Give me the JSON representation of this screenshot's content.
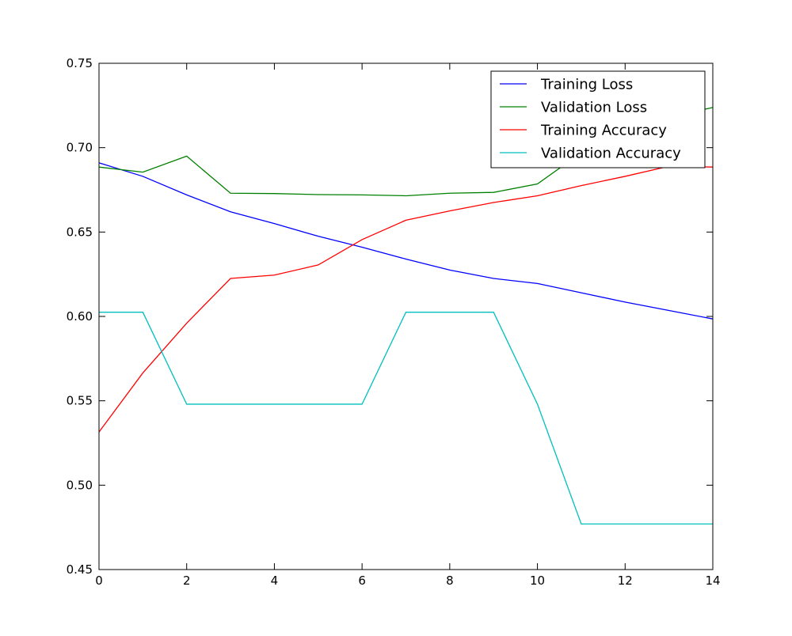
{
  "chart_data": {
    "type": "line",
    "title": "",
    "xlabel": "",
    "ylabel": "",
    "xlim": [
      0,
      14
    ],
    "ylim": [
      0.45,
      0.75
    ],
    "xticks": [
      0,
      2,
      4,
      6,
      8,
      10,
      12,
      14
    ],
    "yticks": [
      0.45,
      0.5,
      0.55,
      0.6,
      0.65,
      0.7,
      0.75
    ],
    "x_tick_labels": [
      "0",
      "2",
      "4",
      "6",
      "8",
      "10",
      "12",
      "14"
    ],
    "y_tick_labels": [
      "0.45",
      "0.50",
      "0.55",
      "0.60",
      "0.65",
      "0.70",
      "0.75"
    ],
    "grid": false,
    "legend_position": "top-right",
    "x": [
      0,
      1,
      2,
      3,
      4,
      5,
      6,
      7,
      8,
      9,
      10,
      11,
      12,
      13,
      14
    ],
    "series": [
      {
        "name": "Training Loss",
        "color": "#0000ff",
        "values": [
          0.691,
          0.683,
          0.672,
          0.662,
          0.655,
          0.6475,
          0.641,
          0.634,
          0.6275,
          0.6225,
          0.6195,
          0.614,
          0.6085,
          0.6035,
          0.5985
        ]
      },
      {
        "name": "Validation Loss",
        "color": "#008000",
        "values": [
          0.6885,
          0.6855,
          0.695,
          0.673,
          0.6728,
          0.6722,
          0.672,
          0.6715,
          0.673,
          0.6735,
          0.6785,
          0.697,
          0.708,
          0.718,
          0.7238
        ]
      },
      {
        "name": "Training Accuracy",
        "color": "#ff0000",
        "values": [
          0.5315,
          0.5665,
          0.596,
          0.6225,
          0.6245,
          0.6305,
          0.6455,
          0.657,
          0.6625,
          0.6675,
          0.6715,
          0.6775,
          0.683,
          0.689,
          0.6885
        ]
      },
      {
        "name": "Validation Accuracy",
        "color": "#00bfbf",
        "values": [
          0.6025,
          0.6025,
          0.548,
          0.548,
          0.548,
          0.548,
          0.548,
          0.6025,
          0.6025,
          0.6025,
          0.548,
          0.477,
          0.477,
          0.477,
          0.477
        ]
      }
    ]
  }
}
